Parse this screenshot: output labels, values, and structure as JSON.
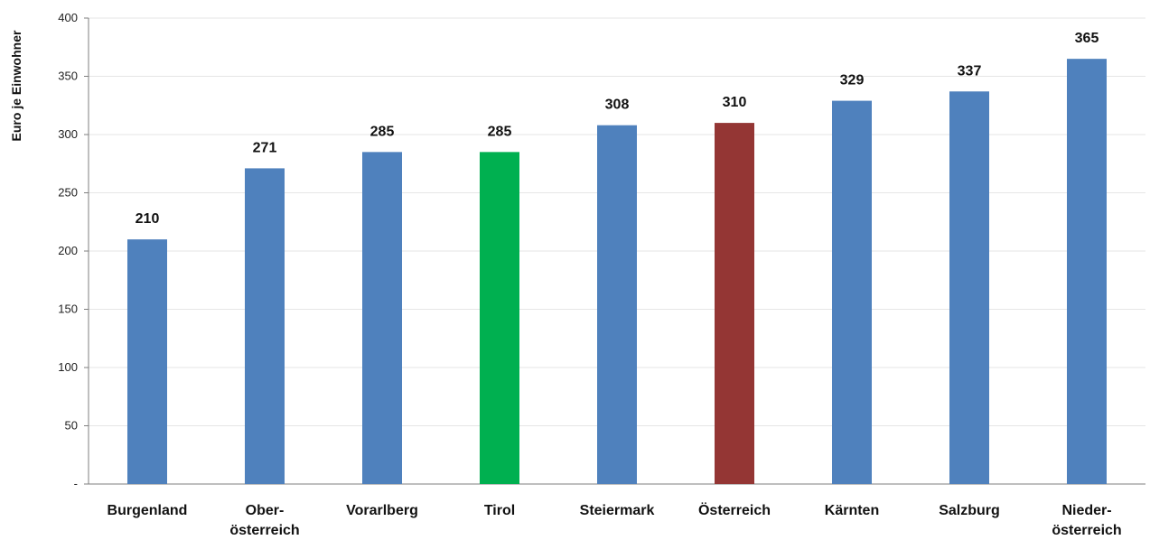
{
  "chart_data": {
    "type": "bar",
    "title": "",
    "xlabel": "",
    "ylabel": "Euro je Einwohner",
    "ylim": [
      0,
      400
    ],
    "yticks": [
      0,
      50,
      100,
      150,
      200,
      250,
      300,
      350,
      400
    ],
    "ytick_labels": [
      "-",
      "50",
      "100",
      "150",
      "200",
      "250",
      "300",
      "350",
      "400"
    ],
    "grid": true,
    "legend": "none",
    "categories": [
      [
        "Burgenland"
      ],
      [
        "Ober-",
        "österreich"
      ],
      [
        "Vorarlberg"
      ],
      [
        "Tirol"
      ],
      [
        "Steiermark"
      ],
      [
        "Österreich"
      ],
      [
        "Kärnten"
      ],
      [
        "Salzburg"
      ],
      [
        "Nieder-",
        "österreich"
      ]
    ],
    "values": [
      210,
      271,
      285,
      285,
      308,
      310,
      329,
      337,
      365
    ],
    "data_labels": [
      "210",
      "271",
      "285",
      "285",
      "308",
      "310",
      "329",
      "337",
      "365"
    ],
    "colors": [
      "#4f81bd",
      "#4f81bd",
      "#4f81bd",
      "#00b050",
      "#4f81bd",
      "#943634",
      "#4f81bd",
      "#4f81bd",
      "#4f81bd"
    ]
  }
}
